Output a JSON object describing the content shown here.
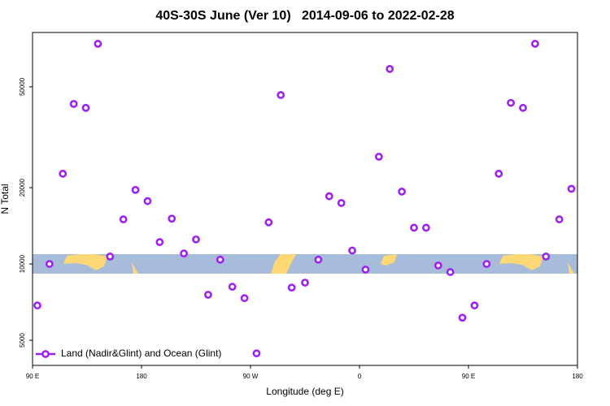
{
  "chart_data": {
    "type": "scatter",
    "title": "40S-30S June (Ver 10)   2014-09-06 to 2022-02-28",
    "xlabel": "Longitude (deg E)",
    "ylabel": "N Total",
    "log_y": true,
    "legend_position": "bottom-left",
    "xlim": [
      90,
      540
    ],
    "ylim": [
      3980,
      81900
    ],
    "xticks": [
      {
        "value": 90,
        "label": "90 E"
      },
      180,
      {
        "value": 270,
        "label": "90 W"
      },
      {
        "value": 360,
        "label": "0"
      },
      {
        "value": 450,
        "label": "90 E"
      },
      {
        "value": 540,
        "label": "180"
      }
    ],
    "yticks": [
      5000,
      10000,
      20000,
      50000
    ],
    "series": [
      {
        "name": "Land (Nadir&Glint) and Ocean (Glint)",
        "color": "#a020f0",
        "x": [
          94,
          104,
          115,
          124,
          134,
          144,
          154,
          165,
          175,
          185,
          195,
          205,
          215,
          225,
          235,
          245,
          255,
          265,
          275,
          285,
          295,
          304,
          315,
          326,
          335,
          345,
          354,
          365,
          376,
          385,
          395,
          405,
          415,
          425,
          435,
          445,
          455,
          465,
          475,
          485,
          495,
          505,
          514,
          525,
          535
        ],
        "values": [
          6860,
          10000,
          22700,
          42800,
          41300,
          73900,
          10700,
          15000,
          19600,
          17700,
          12200,
          15100,
          11000,
          12500,
          7560,
          10400,
          8130,
          7330,
          4440,
          14600,
          46400,
          8070,
          8440,
          10400,
          18500,
          17400,
          11300,
          9500,
          26500,
          58800,
          19300,
          13900,
          13900,
          9860,
          9290,
          6140,
          6860,
          10000,
          22700,
          43200,
          41300,
          73900,
          10700,
          15000,
          19800
        ]
      }
    ]
  }
}
